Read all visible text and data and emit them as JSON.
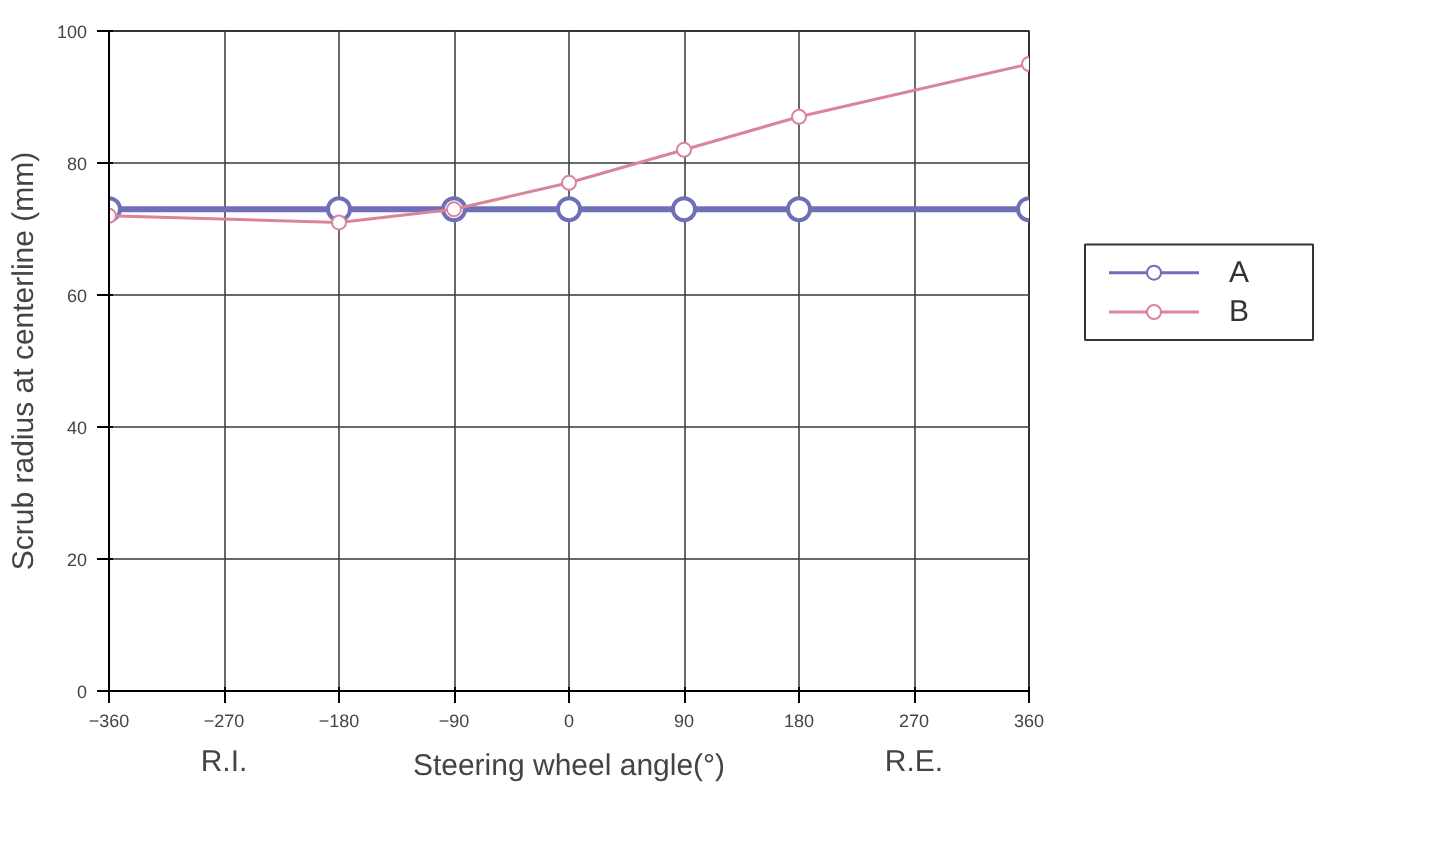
{
  "chart_data": {
    "type": "line",
    "xlabel": "Steering wheel angle(°)",
    "ylabel": "Scrub radius at centerline (mm)",
    "annotations": [
      "R.I.",
      "R.E."
    ],
    "x": [
      -360,
      -180,
      -90,
      0,
      90,
      180,
      360
    ],
    "series": [
      {
        "name": "A",
        "color": "#6f6fb8",
        "values": [
          73,
          73,
          73,
          73,
          73,
          73,
          73
        ]
      },
      {
        "name": "B",
        "color": "#d9849a",
        "values": [
          72,
          71,
          73,
          77,
          82,
          87,
          95
        ]
      }
    ],
    "xlim": [
      -360,
      360
    ],
    "xticks": [
      -360,
      -270,
      -180,
      -90,
      0,
      90,
      180,
      270,
      360
    ],
    "ylim": [
      0,
      100
    ],
    "yticks": [
      0,
      20,
      40,
      60,
      80,
      100
    ],
    "grid": true,
    "legend": "right",
    "marker": "circle",
    "line_style": "solid"
  }
}
